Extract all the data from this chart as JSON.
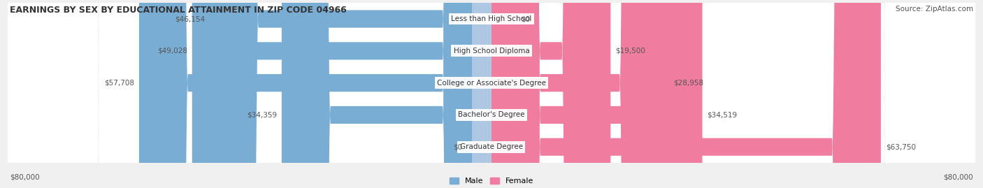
{
  "title": "EARNINGS BY SEX BY EDUCATIONAL ATTAINMENT IN ZIP CODE 04966",
  "source": "Source: ZipAtlas.com",
  "categories": [
    "Less than High School",
    "High School Diploma",
    "College or Associate's Degree",
    "Bachelor's Degree",
    "Graduate Degree"
  ],
  "male_values": [
    46154,
    49028,
    57708,
    34359,
    0
  ],
  "female_values": [
    0,
    19500,
    28958,
    34519,
    63750
  ],
  "male_labels": [
    "$46,154",
    "$49,028",
    "$57,708",
    "$34,359",
    "$0"
  ],
  "female_labels": [
    "$0",
    "$19,500",
    "$28,958",
    "$34,519",
    "$63,750"
  ],
  "male_color": "#7aadd4",
  "female_color": "#f07ca0",
  "male_color_light": "#aec8e4",
  "female_color_light": "#f5a8bf",
  "max_value": 80000,
  "bg_color": "#f0f0f0",
  "row_bg": "#ffffff",
  "axis_label_left": "$80,000",
  "axis_label_right": "$80,000"
}
